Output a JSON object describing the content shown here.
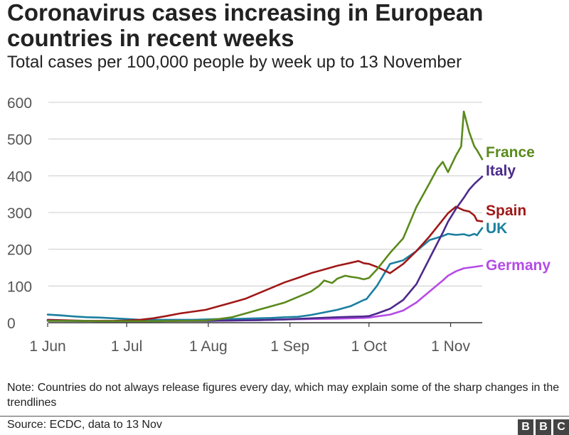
{
  "header": {
    "title": "Coronavirus cases increasing in European countries in recent weeks",
    "subtitle": "Total cases per 100,000 people by week up to 13 November"
  },
  "footer": {
    "note": "Note: Countries do not always release figures every day, which may explain some of the sharp changes in the trendlines",
    "source": "Source: ECDC, data to 13 Nov",
    "logo_letters": [
      "B",
      "B",
      "C"
    ]
  },
  "chart_data": {
    "type": "line",
    "title": "Coronavirus cases increasing in European countries in recent weeks",
    "subtitle": "Total cases per 100,000 people by week up to 13 November",
    "xlabel": "",
    "ylabel": "",
    "x_unit": "days since 1 Jun",
    "xlim": [
      0,
      165
    ],
    "ylim": [
      0,
      600
    ],
    "yticks": [
      0,
      100,
      200,
      300,
      400,
      500,
      600
    ],
    "xticks": [
      {
        "label": "1 Jun",
        "day": 0
      },
      {
        "label": "1 Jul",
        "day": 30
      },
      {
        "label": "1 Aug",
        "day": 61
      },
      {
        "label": "1 Sep",
        "day": 92
      },
      {
        "label": "1 Oct",
        "day": 122
      },
      {
        "label": "1 Nov",
        "day": 153
      }
    ],
    "grid": true,
    "series": [
      {
        "name": "UK",
        "color": "#1a7fa0",
        "x": [
          0,
          5,
          10,
          15,
          20,
          25,
          30,
          35,
          40,
          45,
          50,
          55,
          60,
          65,
          70,
          75,
          80,
          85,
          90,
          95,
          100,
          105,
          110,
          115,
          118,
          120,
          121,
          125,
          130,
          135,
          140,
          145,
          150,
          152,
          155,
          158,
          160,
          162,
          163,
          165
        ],
        "y": [
          22,
          20,
          17,
          15,
          14,
          12,
          10,
          8,
          8,
          8,
          8,
          8,
          9,
          10,
          10,
          11,
          12,
          13,
          15,
          16,
          21,
          28,
          35,
          45,
          55,
          62,
          64,
          100,
          160,
          170,
          195,
          225,
          236,
          242,
          239,
          241,
          237,
          242,
          238,
          258
        ]
      },
      {
        "name": "Spain",
        "color": "#a01818",
        "x": [
          0,
          5,
          10,
          15,
          20,
          25,
          30,
          35,
          40,
          45,
          50,
          55,
          60,
          65,
          70,
          75,
          80,
          85,
          90,
          95,
          100,
          105,
          110,
          115,
          118,
          120,
          122,
          125,
          130,
          135,
          140,
          145,
          150,
          152,
          155,
          158,
          160,
          162,
          163,
          165
        ],
        "y": [
          8,
          7,
          6,
          5,
          5,
          5,
          6,
          8,
          12,
          18,
          25,
          30,
          35,
          45,
          55,
          65,
          80,
          95,
          110,
          122,
          135,
          145,
          155,
          163,
          168,
          162,
          160,
          152,
          135,
          160,
          195,
          235,
          280,
          298,
          316,
          306,
          303,
          292,
          278,
          276
        ]
      },
      {
        "name": "Germany",
        "color": "#b44ce6",
        "x": [
          0,
          10,
          20,
          30,
          40,
          50,
          60,
          70,
          80,
          90,
          100,
          110,
          115,
          120,
          122,
          125,
          130,
          135,
          140,
          145,
          150,
          152,
          155,
          158,
          160,
          162,
          165
        ],
        "y": [
          5,
          5,
          4,
          4,
          4,
          5,
          5,
          6,
          7,
          9,
          10,
          11,
          12,
          13,
          14,
          17,
          22,
          33,
          55,
          85,
          115,
          128,
          140,
          148,
          150,
          152,
          155
        ]
      },
      {
        "name": "Italy",
        "color": "#4b2a8a",
        "x": [
          0,
          10,
          20,
          30,
          40,
          50,
          60,
          70,
          80,
          90,
          100,
          110,
          115,
          120,
          122,
          125,
          130,
          135,
          140,
          145,
          150,
          152,
          155,
          158,
          160,
          162,
          165
        ],
        "y": [
          6,
          5,
          4,
          4,
          4,
          5,
          5,
          6,
          7,
          9,
          12,
          15,
          16,
          17,
          18,
          25,
          38,
          62,
          105,
          175,
          245,
          275,
          310,
          340,
          362,
          378,
          398
        ]
      },
      {
        "name": "France",
        "color": "#5a8a1c",
        "x": [
          0,
          10,
          20,
          30,
          40,
          50,
          60,
          65,
          70,
          75,
          80,
          85,
          90,
          95,
          100,
          103,
          105,
          108,
          110,
          113,
          115,
          118,
          120,
          122,
          125,
          130,
          135,
          140,
          145,
          148,
          150,
          152,
          155,
          157,
          158,
          160,
          162,
          163,
          165
        ],
        "y": [
          5,
          5,
          4,
          4,
          4,
          5,
          6,
          10,
          15,
          25,
          35,
          45,
          55,
          70,
          85,
          100,
          115,
          108,
          120,
          128,
          125,
          122,
          118,
          122,
          145,
          190,
          230,
          315,
          380,
          420,
          438,
          410,
          455,
          480,
          575,
          520,
          480,
          470,
          445
        ]
      }
    ],
    "legend": "inline-right-of-lines"
  }
}
